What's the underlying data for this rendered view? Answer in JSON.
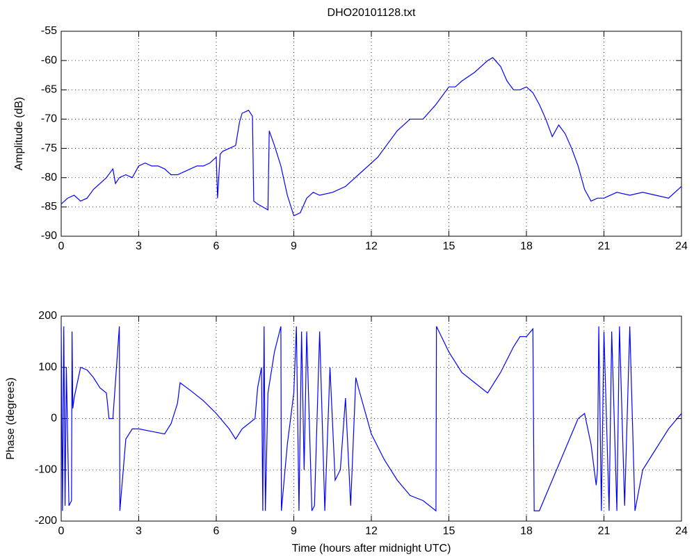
{
  "chart_data": [
    {
      "type": "line",
      "title": "DHO20101128.txt",
      "ylabel": "Amplitude (dB)",
      "xlim": [
        0,
        24
      ],
      "xticks": [
        0,
        3,
        6,
        9,
        12,
        15,
        18,
        21,
        24
      ],
      "ylim": [
        -90,
        -55
      ],
      "yticks": [
        -90,
        -85,
        -80,
        -75,
        -70,
        -65,
        -60,
        -55
      ],
      "grid": true,
      "series": [
        {
          "color": "#0000ff",
          "x": [
            0,
            0.25,
            0.5,
            0.75,
            1.0,
            1.25,
            1.5,
            1.75,
            2.0,
            2.1,
            2.25,
            2.5,
            2.75,
            3.0,
            3.25,
            3.5,
            3.75,
            4.0,
            4.25,
            4.5,
            4.75,
            5.0,
            5.25,
            5.5,
            5.75,
            6.0,
            6.05,
            6.15,
            6.25,
            6.5,
            6.75,
            6.9,
            7.0,
            7.25,
            7.4,
            7.45,
            7.6,
            7.8,
            8.0,
            8.05,
            8.25,
            8.5,
            8.75,
            9.0,
            9.25,
            9.5,
            9.75,
            10.0,
            10.5,
            11.0,
            11.5,
            12.0,
            12.25,
            12.5,
            12.75,
            13.0,
            13.5,
            14.0,
            14.5,
            15.0,
            15.25,
            15.5,
            16.0,
            16.25,
            16.5,
            16.7,
            17.0,
            17.25,
            17.5,
            17.75,
            18.0,
            18.25,
            18.5,
            18.75,
            19.0,
            19.25,
            19.5,
            19.75,
            20.0,
            20.25,
            20.5,
            20.75,
            21.0,
            21.5,
            22.0,
            22.5,
            23.0,
            23.5,
            24.0
          ],
          "values": [
            -84.5,
            -83.5,
            -83,
            -84,
            -83.5,
            -82,
            -81,
            -80,
            -78.5,
            -81,
            -80,
            -79.5,
            -80,
            -78,
            -77.5,
            -78,
            -78,
            -78.5,
            -79.5,
            -79.5,
            -79,
            -78.5,
            -78,
            -78,
            -77.5,
            -76.5,
            -83.5,
            -76,
            -75.5,
            -75,
            -74.5,
            -70.5,
            -69,
            -68.5,
            -69.5,
            -84,
            -84.5,
            -85,
            -85.5,
            -72,
            -74.5,
            -78,
            -83,
            -86.5,
            -86,
            -83.5,
            -82.5,
            -83,
            -82.5,
            -81.5,
            -79.5,
            -77.5,
            -76.5,
            -75,
            -73.5,
            -72,
            -70,
            -70,
            -67.5,
            -64.5,
            -64.5,
            -63.5,
            -62,
            -61,
            -60,
            -59.5,
            -61,
            -63.5,
            -65,
            -65,
            -64.5,
            -65.5,
            -67.5,
            -70,
            -73,
            -71,
            -72.5,
            -75,
            -78,
            -82,
            -84,
            -83.5,
            -83.5,
            -82.5,
            -83,
            -82.5,
            -83,
            -83.5,
            -81.5
          ]
        }
      ]
    },
    {
      "type": "line",
      "xlabel": "Time (hours after midnight UTC)",
      "ylabel": "Phase (degrees)",
      "xlim": [
        0,
        24
      ],
      "xticks": [
        0,
        3,
        6,
        9,
        12,
        15,
        18,
        21,
        24
      ],
      "ylim": [
        -200,
        200
      ],
      "yticks": [
        -200,
        -100,
        0,
        100,
        200
      ],
      "grid": true,
      "series": [
        {
          "color": "#0000ff",
          "x": [
            0,
            0.05,
            0.1,
            0.15,
            0.2,
            0.3,
            0.4,
            0.42,
            0.45,
            0.5,
            0.75,
            1.0,
            1.25,
            1.5,
            1.75,
            1.85,
            2.0,
            2.25,
            2.27,
            2.5,
            2.75,
            3.0,
            3.5,
            4.0,
            4.25,
            4.5,
            4.6,
            5.0,
            5.5,
            6.0,
            6.5,
            6.75,
            7.0,
            7.25,
            7.5,
            7.6,
            7.75,
            7.8,
            7.85,
            7.9,
            8.0,
            8.25,
            8.5,
            8.52,
            8.75,
            9.0,
            9.1,
            9.2,
            9.3,
            9.4,
            9.5,
            9.7,
            9.8,
            10.0,
            10.2,
            10.4,
            10.6,
            10.8,
            11.0,
            11.2,
            11.4,
            11.5,
            12.0,
            12.5,
            13.0,
            13.5,
            14.0,
            14.5,
            14.52,
            15.0,
            15.5,
            16.0,
            16.5,
            17.0,
            17.5,
            17.75,
            18.0,
            18.25,
            18.3,
            18.5,
            19.0,
            19.5,
            20.0,
            20.25,
            20.5,
            20.7,
            20.75,
            20.8,
            20.9,
            21.0,
            21.2,
            21.3,
            21.5,
            21.6,
            21.8,
            22.0,
            22.2,
            22.5,
            23.0,
            23.5,
            24.0
          ],
          "values": [
            180,
            -180,
            180,
            -170,
            100,
            -170,
            -160,
            170,
            20,
            40,
            100,
            95,
            80,
            60,
            50,
            0,
            0,
            180,
            -180,
            -40,
            -20,
            -20,
            -25,
            -30,
            -10,
            30,
            70,
            55,
            35,
            10,
            -20,
            -40,
            -20,
            -10,
            0,
            60,
            100,
            -180,
            180,
            -180,
            50,
            130,
            180,
            -180,
            -50,
            50,
            180,
            -180,
            170,
            -100,
            170,
            -180,
            -170,
            170,
            -180,
            100,
            -120,
            -100,
            40,
            -170,
            80,
            60,
            -30,
            -80,
            -120,
            -150,
            -160,
            -180,
            180,
            130,
            90,
            70,
            50,
            90,
            140,
            160,
            160,
            175,
            -180,
            -180,
            -120,
            -60,
            0,
            10,
            -50,
            -130,
            -100,
            180,
            -180,
            170,
            -180,
            170,
            -180,
            180,
            -170,
            180,
            -180,
            -100,
            -60,
            -20,
            10
          ]
        }
      ]
    }
  ]
}
